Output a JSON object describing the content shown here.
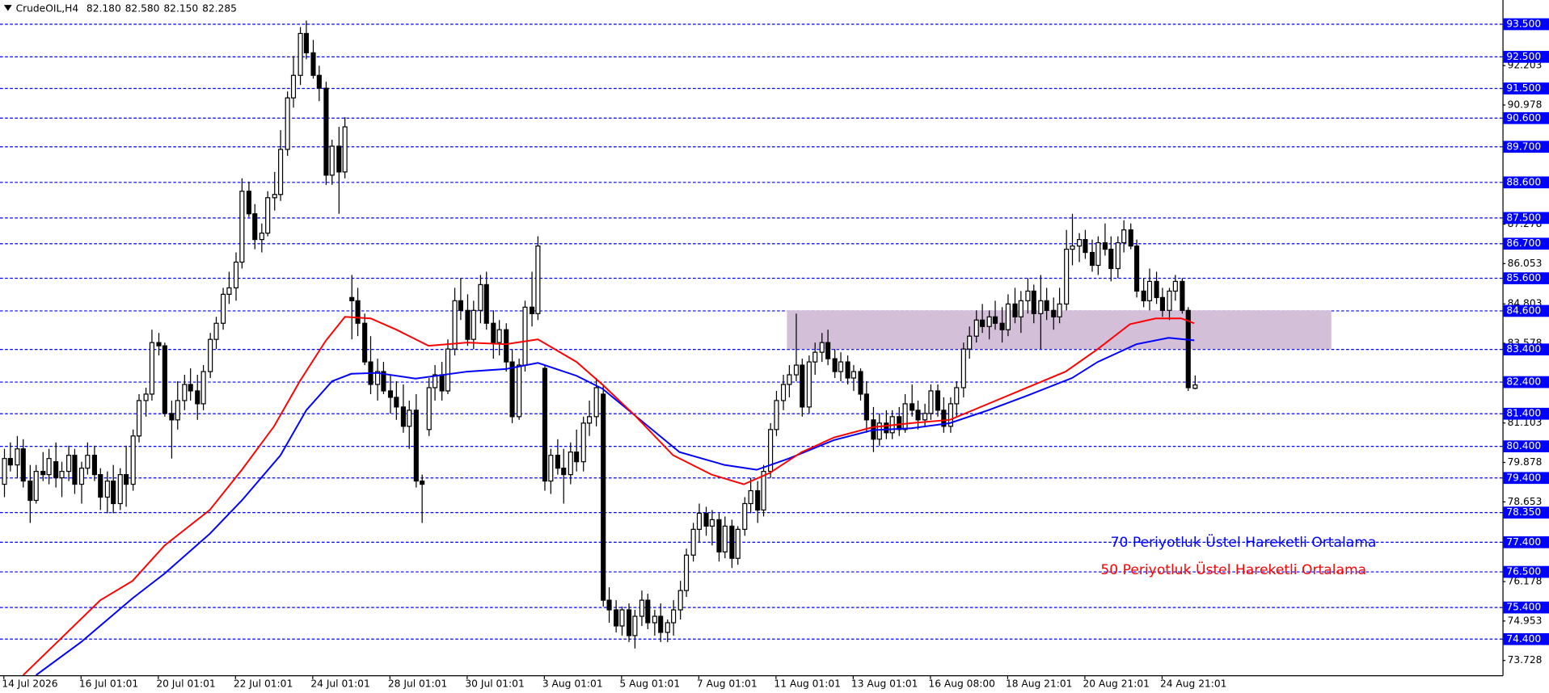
{
  "chart_data": {
    "type": "candlestick",
    "title": "CrudeOIL,H4",
    "header_values": [
      "82.180",
      "82.580",
      "82.150",
      "82.285"
    ],
    "xlim": [
      -0.6,
      232.9
    ],
    "ylim": [
      73.27,
      94.24
    ],
    "yticks": [
      92.203,
      90.978,
      87.278,
      86.053,
      84.803,
      83.578,
      81.103,
      79.878,
      78.653,
      76.178,
      74.953,
      73.728
    ],
    "xticks": [
      {
        "value": 0,
        "label": "14 Jul 2026"
      },
      {
        "value": 12,
        "label": "16 Jul 01:01"
      },
      {
        "value": 24,
        "label": "20 Jul 01:01"
      },
      {
        "value": 36,
        "label": "22 Jul 01:01"
      },
      {
        "value": 48,
        "label": "24 Jul 01:01"
      },
      {
        "value": 60,
        "label": "28 Jul 01:01"
      },
      {
        "value": 72,
        "label": "30 Jul 01:01"
      },
      {
        "value": 84,
        "label": "3 Aug 01:01"
      },
      {
        "value": 96,
        "label": "5 Aug 01:01"
      },
      {
        "value": 108,
        "label": "7 Aug 01:01"
      },
      {
        "value": 120,
        "label": "11 Aug 01:01"
      },
      {
        "value": 132,
        "label": "13 Aug 01:01"
      },
      {
        "value": 144,
        "label": "16 Aug 08:00"
      },
      {
        "value": 156,
        "label": "18 Aug 21:01"
      },
      {
        "value": 168,
        "label": "20 Aug 21:01"
      },
      {
        "value": 180,
        "label": "24 Aug 21:01"
      }
    ],
    "levels": [
      {
        "value": 93.5,
        "label": "93.500"
      },
      {
        "value": 92.5,
        "label": "92.500"
      },
      {
        "value": 91.5,
        "label": "91.500"
      },
      {
        "value": 90.6,
        "label": "90.600"
      },
      {
        "value": 89.7,
        "label": "89.700"
      },
      {
        "value": 88.6,
        "label": "88.600"
      },
      {
        "value": 87.5,
        "label": "87.500"
      },
      {
        "value": 86.7,
        "label": "86.700"
      },
      {
        "value": 85.6,
        "label": "85.600"
      },
      {
        "value": 84.6,
        "label": "84.600"
      },
      {
        "value": 83.4,
        "label": "83.400"
      },
      {
        "value": 82.4,
        "label": "82.400"
      },
      {
        "value": 81.4,
        "label": "81.400"
      },
      {
        "value": 80.4,
        "label": "80.400"
      },
      {
        "value": 79.4,
        "label": "79.400"
      },
      {
        "value": 78.35,
        "label": "78.350"
      },
      {
        "value": 77.4,
        "label": "77.400"
      },
      {
        "value": 76.5,
        "label": "76.500"
      },
      {
        "value": 75.4,
        "label": "75.400"
      },
      {
        "value": 74.4,
        "label": "74.400"
      }
    ],
    "level_color": "#0000ff",
    "zone": {
      "x": [
        121.7,
        206.3
      ],
      "y": [
        83.4,
        84.6
      ],
      "color": "#d4bfd9"
    },
    "candles": [
      [
        79.2,
        80.3,
        78.8,
        80.0
      ],
      [
        80.0,
        80.5,
        79.6,
        79.8
      ],
      [
        79.8,
        80.7,
        79.4,
        80.3
      ],
      [
        80.3,
        80.6,
        79.1,
        79.3
      ],
      [
        79.3,
        79.8,
        78.0,
        78.7
      ],
      [
        78.7,
        79.8,
        78.6,
        79.6
      ],
      [
        79.6,
        80.2,
        79.3,
        79.5
      ],
      [
        79.5,
        80.3,
        79.2,
        80.0
      ],
      [
        79.9,
        80.5,
        79.1,
        79.4
      ],
      [
        79.4,
        79.9,
        78.8,
        79.6
      ],
      [
        79.6,
        80.4,
        79.3,
        80.1
      ],
      [
        80.1,
        80.3,
        78.9,
        79.2
      ],
      [
        79.2,
        79.9,
        78.6,
        79.7
      ],
      [
        79.7,
        80.5,
        79.5,
        80.1
      ],
      [
        80.1,
        80.4,
        79.3,
        79.5
      ],
      [
        79.5,
        79.7,
        78.4,
        78.8
      ],
      [
        78.8,
        79.6,
        78.3,
        79.3
      ],
      [
        79.3,
        79.8,
        78.3,
        78.6
      ],
      [
        78.6,
        79.7,
        78.4,
        79.5
      ],
      [
        79.5,
        80.4,
        78.5,
        79.2
      ],
      [
        79.2,
        80.9,
        79.0,
        80.7
      ],
      [
        80.7,
        82.0,
        80.5,
        81.8
      ],
      [
        81.8,
        82.2,
        81.3,
        82.0
      ],
      [
        82.0,
        84.0,
        81.8,
        83.6
      ],
      [
        83.6,
        83.9,
        83.2,
        83.5
      ],
      [
        83.5,
        83.6,
        81.3,
        81.4
      ],
      [
        81.4,
        81.8,
        80.0,
        81.2
      ],
      [
        81.2,
        82.4,
        80.9,
        81.8
      ],
      [
        81.8,
        82.6,
        81.5,
        82.3
      ],
      [
        82.3,
        82.8,
        81.8,
        82.1
      ],
      [
        82.1,
        82.6,
        81.2,
        81.7
      ],
      [
        81.7,
        82.9,
        81.5,
        82.7
      ],
      [
        82.7,
        83.9,
        82.5,
        83.7
      ],
      [
        83.7,
        84.4,
        83.4,
        84.2
      ],
      [
        84.2,
        85.3,
        84.0,
        85.1
      ],
      [
        85.1,
        85.8,
        84.8,
        85.3
      ],
      [
        85.3,
        86.4,
        84.9,
        86.1
      ],
      [
        86.1,
        88.7,
        85.9,
        88.3
      ],
      [
        88.3,
        88.6,
        87.5,
        87.6
      ],
      [
        87.6,
        87.9,
        86.5,
        86.8
      ],
      [
        86.8,
        87.3,
        86.4,
        87.0
      ],
      [
        87.0,
        88.3,
        86.9,
        88.1
      ],
      [
        88.1,
        88.9,
        87.7,
        88.2
      ],
      [
        88.2,
        90.2,
        88.0,
        89.6
      ],
      [
        89.6,
        91.4,
        89.4,
        91.2
      ],
      [
        91.2,
        92.5,
        90.9,
        91.9
      ],
      [
        91.9,
        93.4,
        91.6,
        93.2
      ],
      [
        93.2,
        93.6,
        92.4,
        92.6
      ],
      [
        92.6,
        93.0,
        91.8,
        91.9
      ],
      [
        91.9,
        92.2,
        91.1,
        91.5
      ],
      [
        91.5,
        91.7,
        88.5,
        88.8
      ],
      [
        88.8,
        89.9,
        88.5,
        89.7
      ],
      [
        89.7,
        90.3,
        87.6,
        88.9
      ],
      [
        88.9,
        90.6,
        88.7,
        90.3
      ],
      [
        85.0,
        85.7,
        83.7,
        84.9
      ],
      [
        84.9,
        85.3,
        83.8,
        84.2
      ],
      [
        84.2,
        84.5,
        82.9,
        83.0
      ],
      [
        83.0,
        83.8,
        82.0,
        82.3
      ],
      [
        82.3,
        83.1,
        81.8,
        82.7
      ],
      [
        82.7,
        83.0,
        82.0,
        82.1
      ],
      [
        82.1,
        82.6,
        81.4,
        81.9
      ],
      [
        81.9,
        82.4,
        81.2,
        81.6
      ],
      [
        81.6,
        82.3,
        80.8,
        81.0
      ],
      [
        81.0,
        81.8,
        80.3,
        81.5
      ],
      [
        81.5,
        82.0,
        79.1,
        79.3
      ],
      [
        79.3,
        79.5,
        78.0,
        79.2
      ],
      [
        80.9,
        82.5,
        80.7,
        82.2
      ],
      [
        82.2,
        82.9,
        81.8,
        82.6
      ],
      [
        82.6,
        83.0,
        81.8,
        82.1
      ],
      [
        82.1,
        83.7,
        82.0,
        83.4
      ],
      [
        83.4,
        85.3,
        83.2,
        84.9
      ],
      [
        84.9,
        85.6,
        84.3,
        84.6
      ],
      [
        84.6,
        85.1,
        83.5,
        83.7
      ],
      [
        83.7,
        84.9,
        83.4,
        84.6
      ],
      [
        84.6,
        85.7,
        84.2,
        85.4
      ],
      [
        85.4,
        85.8,
        84.0,
        84.2
      ],
      [
        84.2,
        84.6,
        83.1,
        83.6
      ],
      [
        83.6,
        84.3,
        83.2,
        84.0
      ],
      [
        84.0,
        84.2,
        82.7,
        83.0
      ],
      [
        83.0,
        83.4,
        81.1,
        81.3
      ],
      [
        81.3,
        83.1,
        81.2,
        82.9
      ],
      [
        82.9,
        84.9,
        82.7,
        84.7
      ],
      [
        84.7,
        85.8,
        84.1,
        84.5
      ],
      [
        84.5,
        86.9,
        84.3,
        86.6
      ],
      [
        82.8,
        82.9,
        79.0,
        79.3
      ],
      [
        79.3,
        80.3,
        78.9,
        80.1
      ],
      [
        80.1,
        80.6,
        79.5,
        79.7
      ],
      [
        79.7,
        80.3,
        78.6,
        79.5
      ],
      [
        79.5,
        80.5,
        79.2,
        80.2
      ],
      [
        80.2,
        80.9,
        79.6,
        79.9
      ],
      [
        79.9,
        81.3,
        79.6,
        81.1
      ],
      [
        81.1,
        81.8,
        80.7,
        81.3
      ],
      [
        81.3,
        82.5,
        81.0,
        82.2
      ],
      [
        82.0,
        82.3,
        75.4,
        75.6
      ],
      [
        75.6,
        76.0,
        74.9,
        75.3
      ],
      [
        75.3,
        75.6,
        74.6,
        74.8
      ],
      [
        74.8,
        75.4,
        74.5,
        75.3
      ],
      [
        75.3,
        75.5,
        74.3,
        74.5
      ],
      [
        74.5,
        75.3,
        74.1,
        75.1
      ],
      [
        75.1,
        75.9,
        74.8,
        75.6
      ],
      [
        75.6,
        75.8,
        74.7,
        74.9
      ],
      [
        74.9,
        75.3,
        74.5,
        75.1
      ],
      [
        75.1,
        75.5,
        74.3,
        74.6
      ],
      [
        74.6,
        75.0,
        74.3,
        74.9
      ],
      [
        74.9,
        75.6,
        74.5,
        75.3
      ],
      [
        75.3,
        76.2,
        75.0,
        75.9
      ],
      [
        75.9,
        77.2,
        75.7,
        77.0
      ],
      [
        77.0,
        78.0,
        76.8,
        77.8
      ],
      [
        77.8,
        78.6,
        77.4,
        78.3
      ],
      [
        78.3,
        78.5,
        77.6,
        77.9
      ],
      [
        77.9,
        78.4,
        77.3,
        78.1
      ],
      [
        78.1,
        78.3,
        76.8,
        77.1
      ],
      [
        77.1,
        78.2,
        76.9,
        77.9
      ],
      [
        77.9,
        78.1,
        76.6,
        76.9
      ],
      [
        76.9,
        77.9,
        76.7,
        77.8
      ],
      [
        77.8,
        78.8,
        77.6,
        78.6
      ],
      [
        78.6,
        79.4,
        78.3,
        79.0
      ],
      [
        79.0,
        79.3,
        78.0,
        78.4
      ],
      [
        78.4,
        79.8,
        78.2,
        79.6
      ],
      [
        79.6,
        81.1,
        79.4,
        80.9
      ],
      [
        80.9,
        82.1,
        80.7,
        81.8
      ],
      [
        81.8,
        82.6,
        81.5,
        82.3
      ],
      [
        82.3,
        82.9,
        81.9,
        82.6
      ],
      [
        82.6,
        84.5,
        82.4,
        82.9
      ],
      [
        82.9,
        83.1,
        81.3,
        81.6
      ],
      [
        81.6,
        83.2,
        81.4,
        83.0
      ],
      [
        83.0,
        83.6,
        82.6,
        83.3
      ],
      [
        83.3,
        83.9,
        83.0,
        83.6
      ],
      [
        83.6,
        84.0,
        82.9,
        83.1
      ],
      [
        83.1,
        83.4,
        82.5,
        82.7
      ],
      [
        82.7,
        83.3,
        82.4,
        83.0
      ],
      [
        83.0,
        83.2,
        82.3,
        82.5
      ],
      [
        82.5,
        82.9,
        82.1,
        82.7
      ],
      [
        82.7,
        82.8,
        81.8,
        82.0
      ],
      [
        82.0,
        82.4,
        80.8,
        81.2
      ],
      [
        81.2,
        81.6,
        80.2,
        80.6
      ],
      [
        80.6,
        81.4,
        80.4,
        81.1
      ],
      [
        81.1,
        81.5,
        80.6,
        80.8
      ],
      [
        80.8,
        81.5,
        80.6,
        81.3
      ],
      [
        81.3,
        81.6,
        80.7,
        80.9
      ],
      [
        80.9,
        82.0,
        80.8,
        81.7
      ],
      [
        81.7,
        82.3,
        81.3,
        81.5
      ],
      [
        81.5,
        81.8,
        80.9,
        81.2
      ],
      [
        81.2,
        81.7,
        81.0,
        81.4
      ],
      [
        81.4,
        82.3,
        81.2,
        82.1
      ],
      [
        82.1,
        82.3,
        81.3,
        81.5
      ],
      [
        81.5,
        81.9,
        80.8,
        81.0
      ],
      [
        81.0,
        81.9,
        80.8,
        81.7
      ],
      [
        81.7,
        82.4,
        81.3,
        82.2
      ],
      [
        82.2,
        83.6,
        81.9,
        83.4
      ],
      [
        83.4,
        84.1,
        83.1,
        83.8
      ],
      [
        83.8,
        84.6,
        83.6,
        84.3
      ],
      [
        84.3,
        84.8,
        83.9,
        84.1
      ],
      [
        84.1,
        84.6,
        83.7,
        84.4
      ],
      [
        84.4,
        84.9,
        84.0,
        84.2
      ],
      [
        84.2,
        84.7,
        83.6,
        84.0
      ],
      [
        84.0,
        85.1,
        83.8,
        84.8
      ],
      [
        84.8,
        85.3,
        84.2,
        84.4
      ],
      [
        84.4,
        85.2,
        83.9,
        84.9
      ],
      [
        84.9,
        85.6,
        84.5,
        85.2
      ],
      [
        85.2,
        85.4,
        84.2,
        84.5
      ],
      [
        84.5,
        85.7,
        83.4,
        84.9
      ],
      [
        84.9,
        85.3,
        84.3,
        84.6
      ],
      [
        84.6,
        85.0,
        84.0,
        84.4
      ],
      [
        84.4,
        85.3,
        84.2,
        84.8
      ],
      [
        84.8,
        87.1,
        84.6,
        86.5
      ],
      [
        86.5,
        87.6,
        86.0,
        86.6
      ],
      [
        86.6,
        87.0,
        86.1,
        86.8
      ],
      [
        86.8,
        87.1,
        86.2,
        86.4
      ],
      [
        86.4,
        86.8,
        85.8,
        86.0
      ],
      [
        86.0,
        86.9,
        85.7,
        86.7
      ],
      [
        86.7,
        87.3,
        86.3,
        86.5
      ],
      [
        86.5,
        86.9,
        85.5,
        85.9
      ],
      [
        85.9,
        86.9,
        85.6,
        86.7
      ],
      [
        86.7,
        87.4,
        86.4,
        87.1
      ],
      [
        87.1,
        87.3,
        86.5,
        86.6
      ],
      [
        86.6,
        86.8,
        85.0,
        85.2
      ],
      [
        85.2,
        85.6,
        84.7,
        84.9
      ],
      [
        84.9,
        85.9,
        84.6,
        85.5
      ],
      [
        85.5,
        85.8,
        84.8,
        85.0
      ],
      [
        85.0,
        85.3,
        84.4,
        84.6
      ],
      [
        84.6,
        85.3,
        84.3,
        85.2
      ],
      [
        85.2,
        85.7,
        84.9,
        85.5
      ],
      [
        85.5,
        85.6,
        84.5,
        84.6
      ],
      [
        84.6,
        84.7,
        82.1,
        82.2
      ],
      [
        82.18,
        82.58,
        82.15,
        82.285
      ]
    ],
    "series": [
      {
        "name": "70 Periyotluk Üstel Hareketli Ortalama",
        "color": "#0000ff",
        "x": [
          5,
          12,
          20,
          25,
          32,
          37,
          43,
          47,
          51,
          54,
          58,
          64,
          72,
          78,
          83,
          89,
          93,
          98,
          105,
          112,
          117,
          122,
          129,
          135,
          141,
          147,
          153,
          159,
          166,
          170,
          176,
          181,
          185
        ],
        "values": [
          73.27,
          74.3,
          75.66,
          76.43,
          77.66,
          78.7,
          80.1,
          81.5,
          82.4,
          82.63,
          82.66,
          82.48,
          82.7,
          82.78,
          82.97,
          82.57,
          82.17,
          81.35,
          80.2,
          79.8,
          79.65,
          80.0,
          80.57,
          80.88,
          80.94,
          81.1,
          81.5,
          81.95,
          82.5,
          83.0,
          83.55,
          83.75,
          83.67
        ]
      },
      {
        "name": "50 Periyotluk Üstel Hareketli Ortalama",
        "color": "#ff0000",
        "x": [
          3,
          15,
          20,
          25,
          32,
          37,
          42,
          46,
          50,
          53,
          57,
          61,
          66,
          72,
          78,
          83,
          89,
          93,
          98,
          104,
          110,
          115,
          119,
          124,
          129,
          135,
          141,
          147,
          153,
          159,
          165,
          170,
          175,
          179,
          183,
          185
        ],
        "values": [
          73.27,
          75.6,
          76.2,
          77.3,
          78.4,
          79.65,
          81.0,
          82.4,
          83.65,
          84.4,
          84.35,
          84.0,
          83.5,
          83.6,
          83.55,
          83.7,
          83.0,
          82.3,
          81.35,
          80.1,
          79.5,
          79.2,
          79.55,
          80.2,
          80.65,
          80.97,
          81.1,
          81.2,
          81.7,
          82.2,
          82.7,
          83.4,
          84.17,
          84.35,
          84.35,
          84.2
        ]
      }
    ]
  }
}
